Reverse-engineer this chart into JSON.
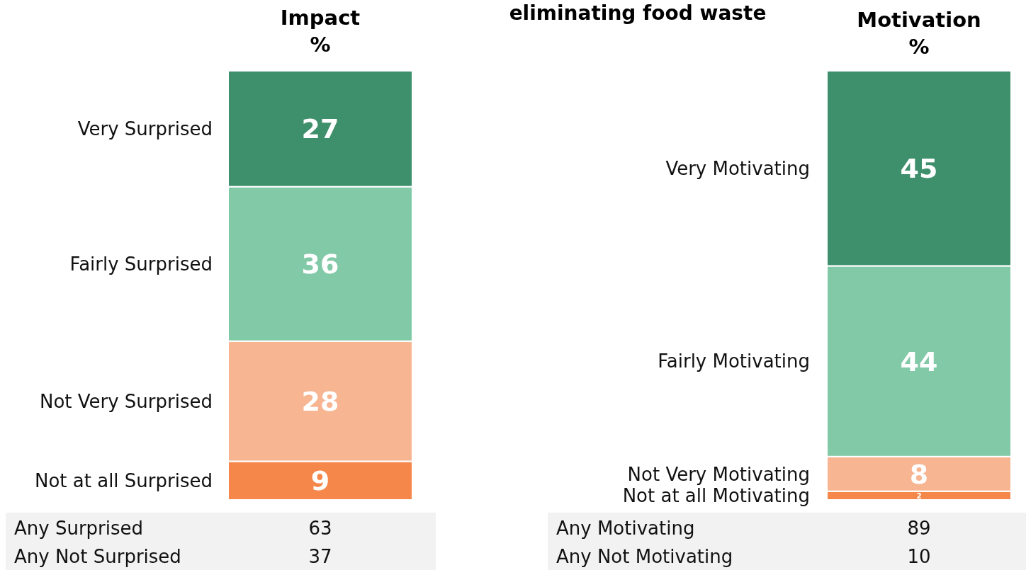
{
  "chart_data": [
    {
      "type": "bar",
      "stacked": true,
      "title": "Impact",
      "subtitle": "%",
      "categories": [
        null
      ],
      "data_labels": true,
      "series": [
        {
          "name": "Not at all Surprised",
          "color": "#f5874a",
          "values": [
            9
          ]
        },
        {
          "name": "Not Very Surprised",
          "color": "#f7b592",
          "values": [
            28
          ]
        },
        {
          "name": "Fairly Surprised",
          "color": "#82c9a8",
          "values": [
            36
          ]
        },
        {
          "name": "Very Surprised",
          "color": "#3e8f6c",
          "values": [
            27
          ]
        }
      ],
      "annotations": [
        "Any Surprised",
        "63",
        "Any Not Surprised",
        "37"
      ]
    },
    {
      "type": "bar",
      "stacked": true,
      "title": "Motivation",
      "subtitle": "%",
      "categories": [
        null
      ],
      "data_labels": true,
      "series": [
        {
          "name": "Not at all Motivating",
          "color": "#f5874a",
          "values": [
            2
          ]
        },
        {
          "name": "Not Very Motivating",
          "color": "#f7b592",
          "values": [
            8
          ]
        },
        {
          "name": "Fairly Motivating",
          "color": "#82c9a8",
          "values": [
            44
          ]
        },
        {
          "name": "Very Motivating",
          "color": "#3e8f6c",
          "values": [
            45
          ]
        }
      ],
      "annotations": [
        "eliminating food waste",
        "Any Motivating",
        "89",
        "Any Not Motivating",
        "10"
      ]
    }
  ]
}
